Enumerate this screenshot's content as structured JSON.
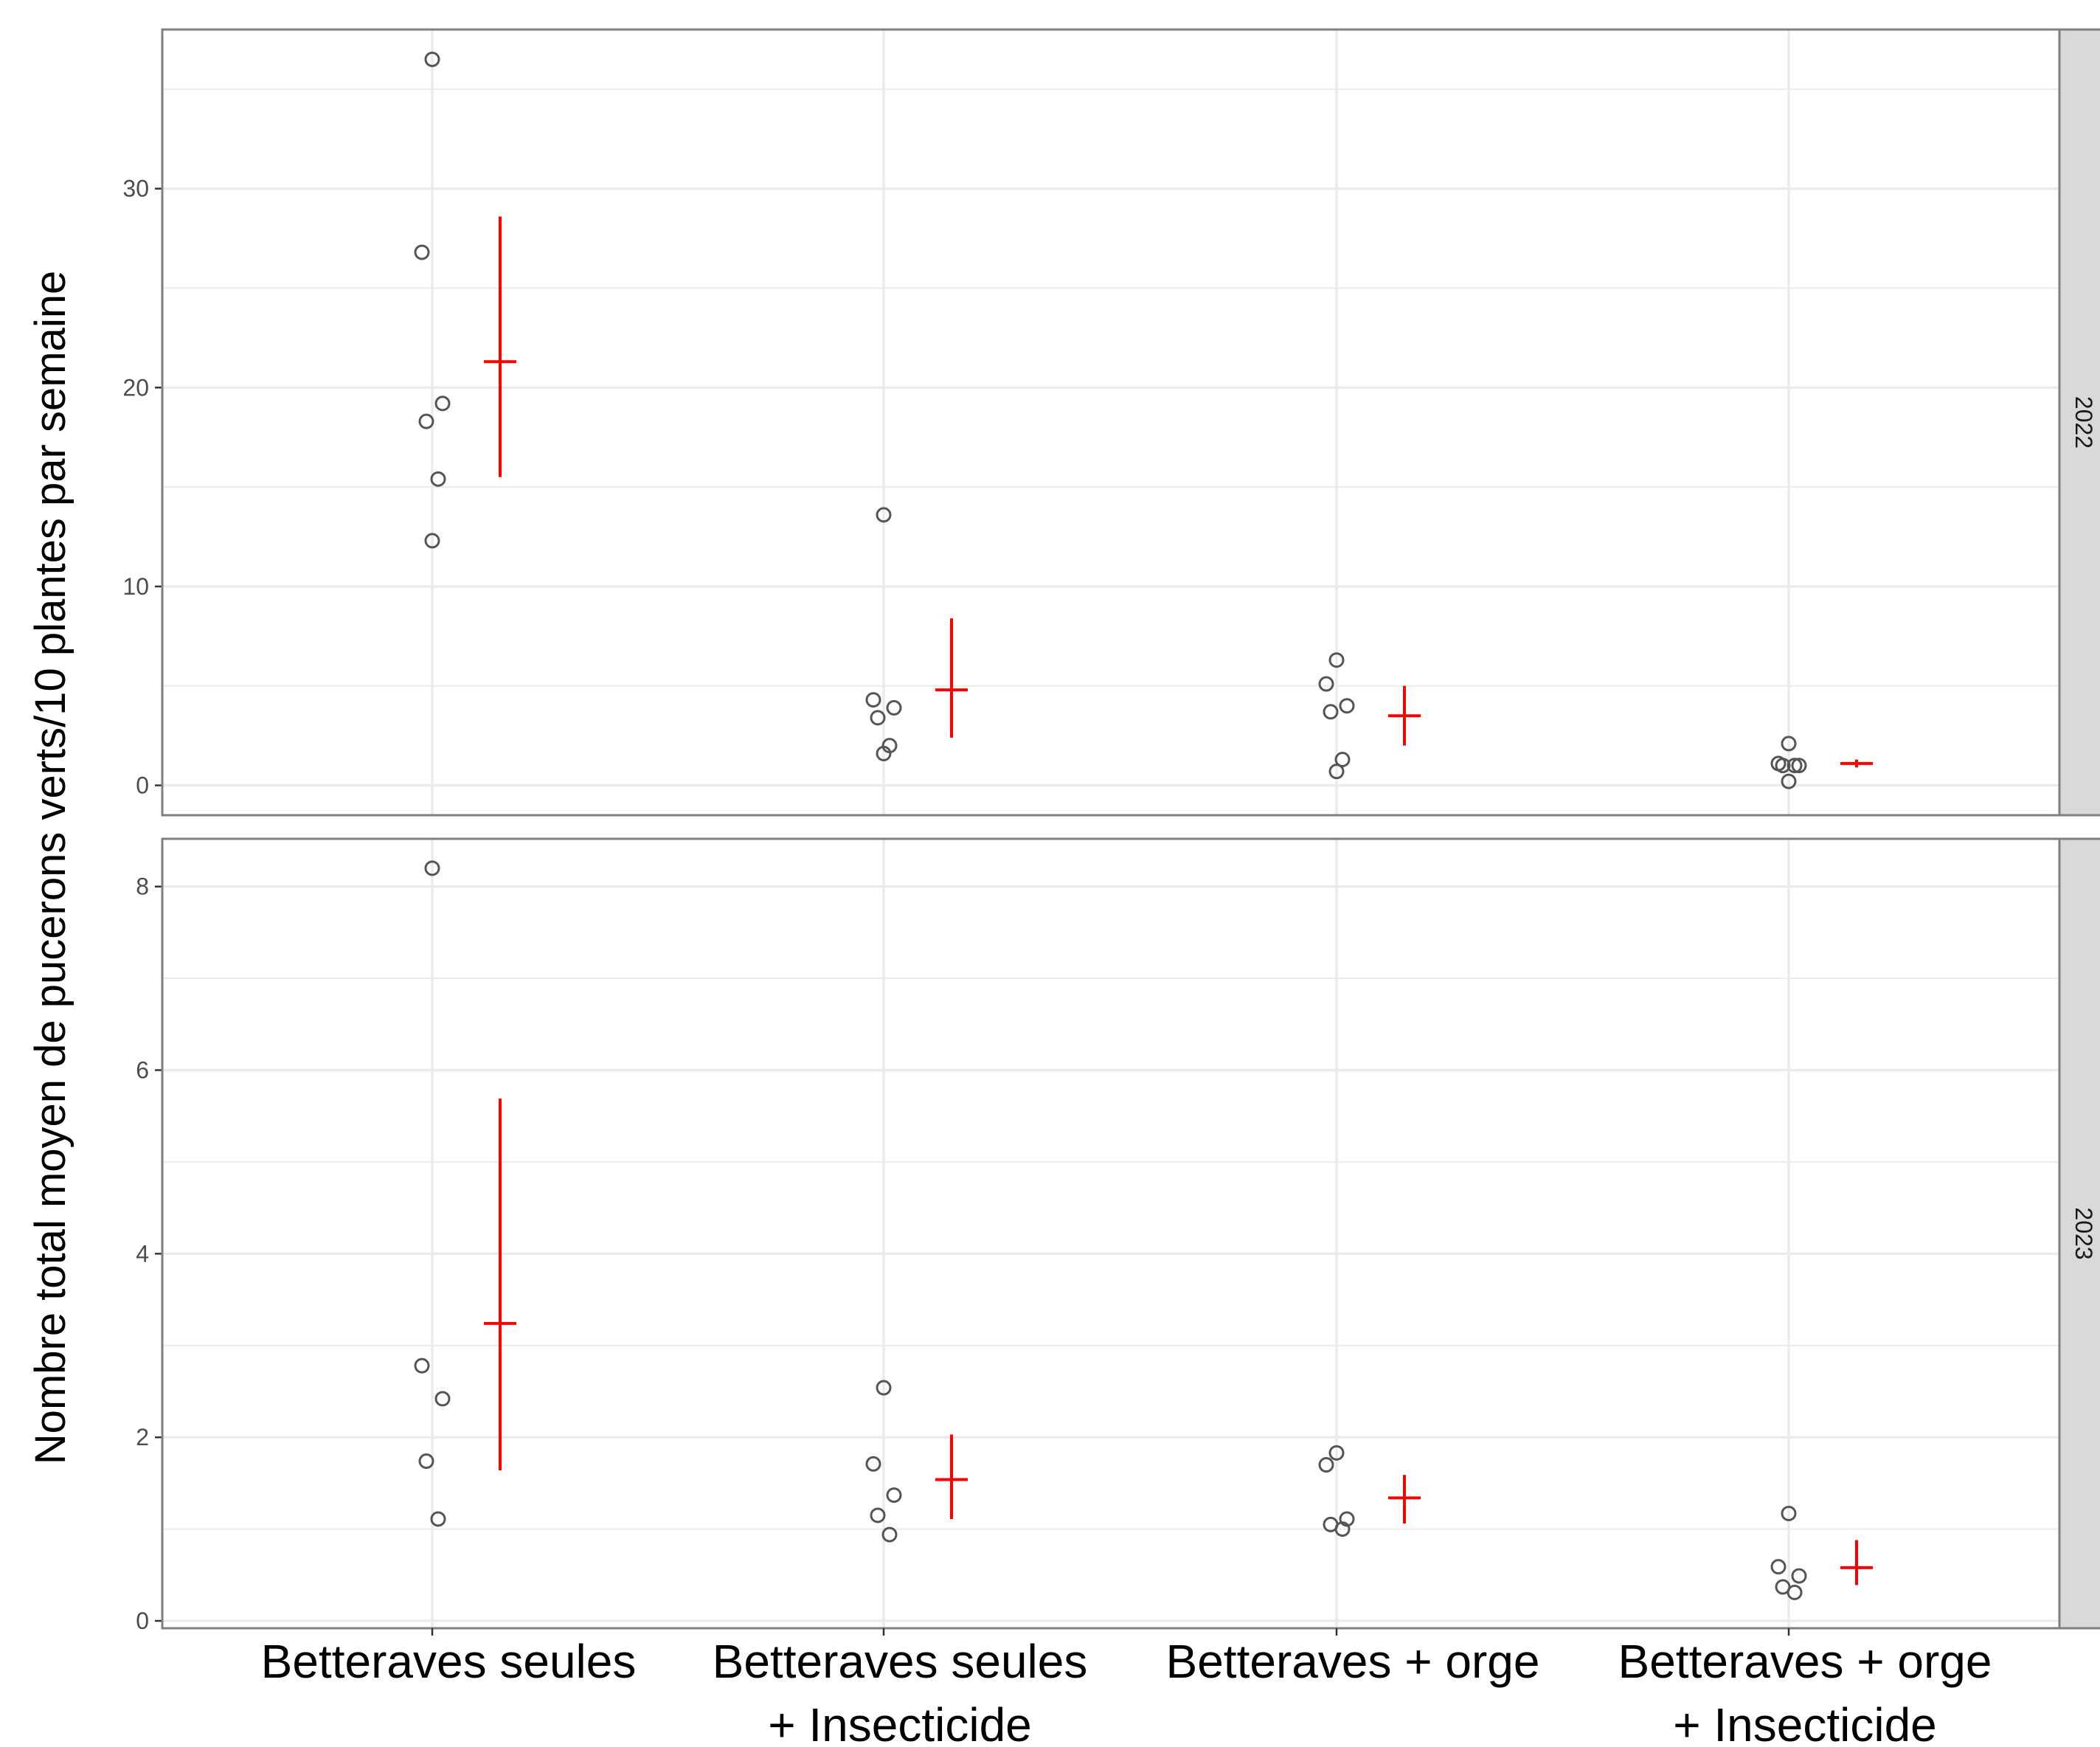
{
  "chart_data": {
    "type": "scatter",
    "ylabel": "Nombre total moyen de pucerons verts/10 plantes par semaine",
    "categories": [
      [
        "Betteraves seules"
      ],
      [
        "Betteraves seules",
        "+ Insecticide"
      ],
      [
        "Betteraves + orge"
      ],
      [
        "Betteraves + orge",
        "+ Insecticide"
      ]
    ],
    "colors": {
      "points": "#555555",
      "summary": "#ff0000",
      "grid": "#ebebeb",
      "strip": "#d9d9d9",
      "panel_border": "#7f7f7f"
    },
    "grid": true,
    "panels": [
      {
        "strip": "2022",
        "ylim": [
          -1.5,
          38
        ],
        "yticks": [
          0,
          10,
          20,
          30
        ],
        "points": [
          [
            36.5,
            26.8,
            19.2,
            18.3,
            15.4,
            12.3
          ],
          [
            13.6,
            4.3,
            3.9,
            3.4,
            2.0,
            1.6
          ],
          [
            6.3,
            5.1,
            4.0,
            3.7,
            1.3,
            0.7
          ],
          [
            2.1,
            1.1,
            1.0,
            1.0,
            1.0,
            0.2
          ]
        ],
        "mean": [
          21.3,
          4.8,
          3.5,
          1.1
        ],
        "ci_low": [
          15.5,
          2.4,
          2.0,
          0.9
        ],
        "ci_high": [
          28.6,
          8.4,
          5.0,
          1.3
        ]
      },
      {
        "strip": "2023",
        "ylim": [
          -0.08,
          8.52
        ],
        "yticks": [
          0,
          2,
          4,
          6,
          8
        ],
        "points": [
          [
            8.2,
            2.78,
            2.42,
            1.74,
            1.11
          ],
          [
            2.54,
            1.71,
            1.37,
            1.15,
            0.94
          ],
          [
            1.83,
            1.7,
            1.11,
            1.05,
            1.0
          ],
          [
            1.17,
            0.59,
            0.49,
            0.37,
            0.31
          ]
        ],
        "mean": [
          3.24,
          1.54,
          1.34,
          0.58
        ],
        "ci_low": [
          1.64,
          1.11,
          1.06,
          0.39
        ],
        "ci_high": [
          5.69,
          2.03,
          1.59,
          0.88
        ]
      }
    ]
  }
}
